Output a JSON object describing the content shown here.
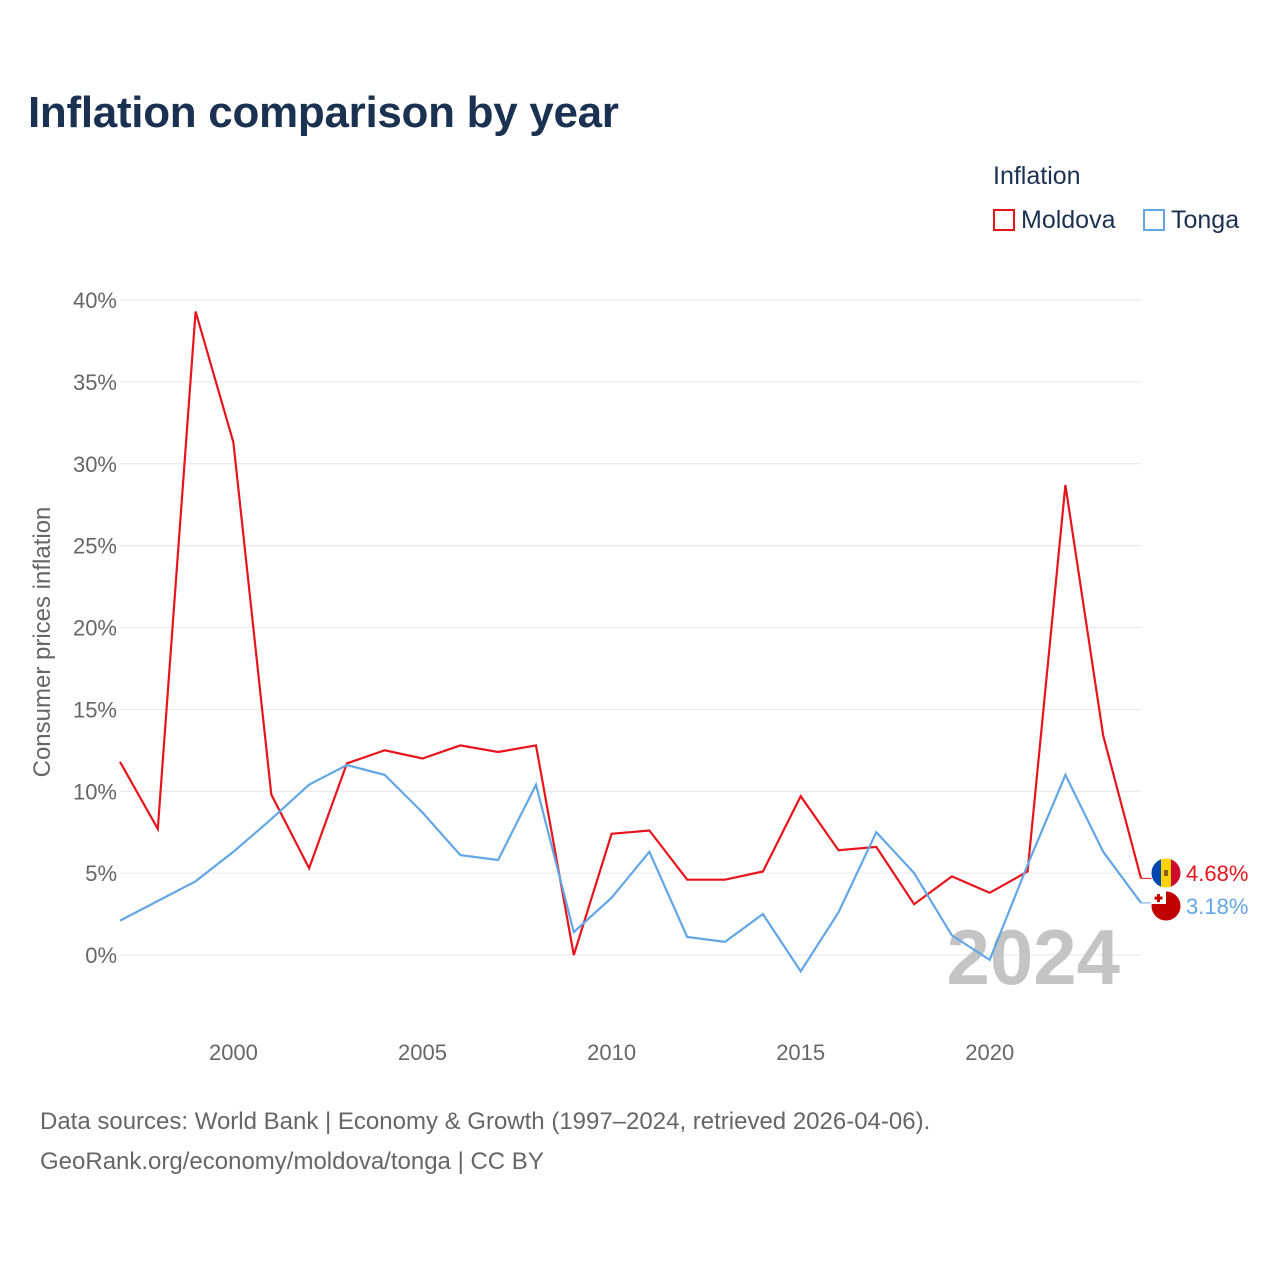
{
  "header": {
    "title": "Inflation comparison by year"
  },
  "legend": {
    "title": "Inflation",
    "items": [
      {
        "name": "Moldova",
        "color": "#e8141c"
      },
      {
        "name": "Tonga",
        "color": "#62a6e6"
      }
    ]
  },
  "footer": {
    "line1": "Data sources: World Bank | Economy & Growth (1997–2024, retrieved 2026-04-06).",
    "line2": "GeoRank.org/economy/moldova/tonga | CC BY"
  },
  "chart_data": {
    "type": "line",
    "title": "Inflation comparison by year",
    "xlabel": "",
    "ylabel": "Consumer prices inflation",
    "x": [
      1997,
      1998,
      1999,
      2000,
      2001,
      2002,
      2003,
      2004,
      2005,
      2006,
      2007,
      2008,
      2009,
      2010,
      2011,
      2012,
      2013,
      2014,
      2015,
      2016,
      2017,
      2018,
      2019,
      2020,
      2021,
      2022,
      2023,
      2024
    ],
    "xlim": [
      1997,
      2024
    ],
    "ylim": [
      -5,
      40
    ],
    "x_ticks": [
      "2000",
      "2005",
      "2010",
      "2015",
      "2020"
    ],
    "x_tick_values": [
      2000,
      2005,
      2010,
      2015,
      2020
    ],
    "y_ticks": [
      "0%",
      "5%",
      "10%",
      "15%",
      "20%",
      "25%",
      "30%",
      "35%",
      "40%"
    ],
    "y_tick_values": [
      0,
      5,
      10,
      15,
      20,
      25,
      30,
      35,
      40
    ],
    "watermark": "2024",
    "series": [
      {
        "name": "Moldova",
        "color": "#e8141c",
        "end_label": "4.68%",
        "flag": "moldova-flag",
        "values": [
          11.8,
          7.7,
          39.3,
          31.3,
          9.8,
          5.3,
          11.7,
          12.5,
          12.0,
          12.8,
          12.4,
          12.8,
          0.0,
          7.4,
          7.6,
          4.6,
          4.6,
          5.1,
          9.7,
          6.4,
          6.6,
          3.1,
          4.8,
          3.8,
          5.1,
          28.7,
          13.4,
          4.68
        ]
      },
      {
        "name": "Tonga",
        "color": "#62a6e6",
        "end_label": "3.18%",
        "flag": "tonga-flag",
        "values": [
          2.1,
          3.3,
          4.5,
          6.3,
          8.3,
          10.4,
          11.6,
          11.0,
          8.7,
          6.1,
          5.8,
          10.4,
          1.4,
          3.5,
          6.3,
          1.1,
          0.8,
          2.5,
          -1.0,
          2.6,
          7.5,
          5.0,
          1.2,
          -0.3,
          5.5,
          11.0,
          6.3,
          3.18
        ]
      }
    ]
  }
}
